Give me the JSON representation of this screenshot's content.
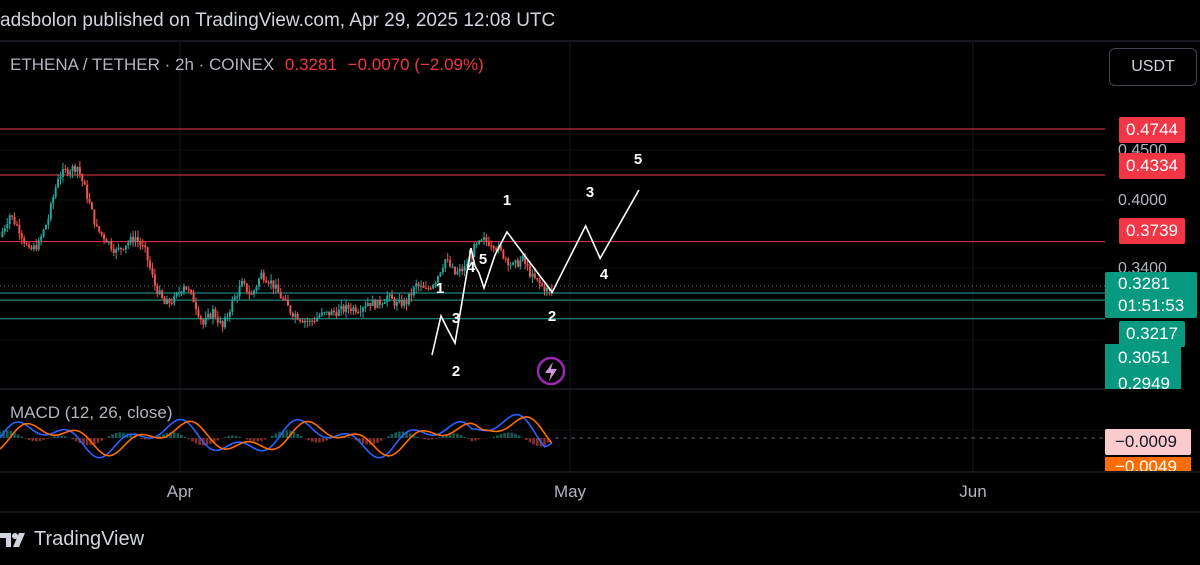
{
  "header": {
    "publish_text": "adsbolon published on TradingView.com, Apr 29, 2025 12:08 UTC"
  },
  "symbol": {
    "name": "ETHENA / TETHER · 2h · COINEX",
    "last": "0.3281",
    "change": "−0.0070 (−2.09%)"
  },
  "currency_button": "USDT",
  "price_axis": {
    "ticks": [
      "0.4500",
      "0.4000",
      "0.3400"
    ],
    "labels": [
      {
        "value": "0.4744",
        "color": "#f23645"
      },
      {
        "value": "0.4334",
        "color": "#f23645"
      },
      {
        "value": "0.3739",
        "color": "#f23645"
      },
      {
        "value": "0.3281",
        "color": "#089981"
      },
      {
        "value": "01:51:53",
        "color": "#089981"
      },
      {
        "value": "0.3217",
        "color": "#089981"
      },
      {
        "value": "0.3051",
        "color": "#089981"
      },
      {
        "value": "0.2949",
        "color": "#089981"
      }
    ]
  },
  "macd": {
    "label": "MACD (12, 26, close)",
    "values": [
      "−0.0009",
      "−0.0049"
    ],
    "colors": [
      "#fccbcd",
      "#ff6d00"
    ]
  },
  "time_axis": [
    "Apr",
    "May",
    "Jun"
  ],
  "wave_labels": [
    "1",
    "2",
    "3",
    "4",
    "5",
    "1",
    "2",
    "3",
    "4",
    "5"
  ],
  "footer": {
    "brand": "TradingView"
  },
  "chart_data": {
    "type": "line",
    "title": "ETHENA / TETHER · 2h · COINEX",
    "ylim": [
      0.29,
      0.49
    ],
    "horizontal_levels": {
      "resistance": [
        0.4744,
        0.4334,
        0.3739
      ],
      "support": [
        0.3281,
        0.3217,
        0.3051
      ]
    },
    "price_path": [
      {
        "t": 0,
        "p": 0.378
      },
      {
        "t": 4,
        "p": 0.398
      },
      {
        "t": 8,
        "p": 0.385
      },
      {
        "t": 12,
        "p": 0.365
      },
      {
        "t": 16,
        "p": 0.372
      },
      {
        "t": 20,
        "p": 0.395
      },
      {
        "t": 24,
        "p": 0.432
      },
      {
        "t": 28,
        "p": 0.438
      },
      {
        "t": 32,
        "p": 0.441
      },
      {
        "t": 36,
        "p": 0.415
      },
      {
        "t": 40,
        "p": 0.385
      },
      {
        "t": 44,
        "p": 0.376
      },
      {
        "t": 48,
        "p": 0.365
      },
      {
        "t": 52,
        "p": 0.372
      },
      {
        "t": 56,
        "p": 0.378
      },
      {
        "t": 60,
        "p": 0.365
      },
      {
        "t": 64,
        "p": 0.335
      },
      {
        "t": 68,
        "p": 0.318
      },
      {
        "t": 72,
        "p": 0.322
      },
      {
        "t": 76,
        "p": 0.336
      },
      {
        "t": 80,
        "p": 0.322
      },
      {
        "t": 84,
        "p": 0.3
      },
      {
        "t": 88,
        "p": 0.312
      },
      {
        "t": 92,
        "p": 0.297
      },
      {
        "t": 96,
        "p": 0.32
      },
      {
        "t": 100,
        "p": 0.336
      },
      {
        "t": 104,
        "p": 0.326
      },
      {
        "t": 108,
        "p": 0.345
      },
      {
        "t": 112,
        "p": 0.338
      },
      {
        "t": 116,
        "p": 0.325
      },
      {
        "t": 120,
        "p": 0.312
      },
      {
        "t": 124,
        "p": 0.306
      },
      {
        "t": 128,
        "p": 0.302
      },
      {
        "t": 132,
        "p": 0.308
      },
      {
        "t": 136,
        "p": 0.31
      },
      {
        "t": 140,
        "p": 0.312
      },
      {
        "t": 144,
        "p": 0.315
      },
      {
        "t": 148,
        "p": 0.314
      },
      {
        "t": 152,
        "p": 0.32
      },
      {
        "t": 156,
        "p": 0.318
      },
      {
        "t": 160,
        "p": 0.325
      },
      {
        "t": 164,
        "p": 0.318
      },
      {
        "t": 168,
        "p": 0.32
      },
      {
        "t": 172,
        "p": 0.335
      },
      {
        "t": 176,
        "p": 0.33
      },
      {
        "t": 180,
        "p": 0.34
      },
      {
        "t": 184,
        "p": 0.358
      },
      {
        "t": 188,
        "p": 0.345
      },
      {
        "t": 192,
        "p": 0.35
      },
      {
        "t": 196,
        "p": 0.368
      },
      {
        "t": 200,
        "p": 0.375
      },
      {
        "t": 204,
        "p": 0.372
      },
      {
        "t": 208,
        "p": 0.362
      },
      {
        "t": 212,
        "p": 0.352
      },
      {
        "t": 216,
        "p": 0.358
      },
      {
        "t": 220,
        "p": 0.342
      },
      {
        "t": 224,
        "p": 0.334
      },
      {
        "t": 228,
        "p": 0.328
      }
    ],
    "wave_projection": [
      {
        "t": 228,
        "p": 0.328
      },
      {
        "t": 242,
        "p": 0.388
      },
      {
        "t": 248,
        "p": 0.359
      },
      {
        "t": 264,
        "p": 0.42
      }
    ]
  }
}
